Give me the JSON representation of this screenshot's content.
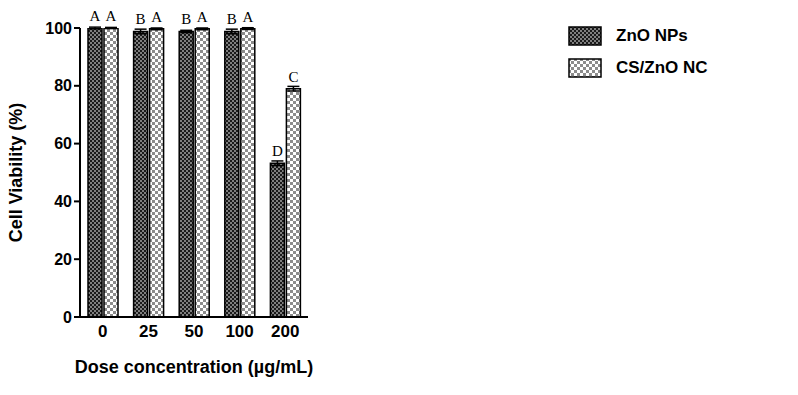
{
  "chart_data": {
    "type": "bar",
    "categories": [
      "0",
      "25",
      "50",
      "100",
      "200"
    ],
    "x_label": "Dose concentration (µg/mL)",
    "y_label": "Cell Viability (%)",
    "ylim": [
      0,
      100
    ],
    "yticks": [
      0,
      20,
      40,
      60,
      80,
      100
    ],
    "grid": false,
    "legend": "top right",
    "series": [
      {
        "name": "ZnO NPs",
        "color": "#1a1a1a",
        "values": [
          100,
          98.8,
          98.8,
          98.8,
          53.2
        ],
        "error": [
          0.3,
          0.8,
          0.4,
          0.8,
          0.8
        ],
        "letters": [
          "A",
          "B",
          "B",
          "B",
          "D"
        ]
      },
      {
        "name": "CS/ZnO NC",
        "color": "#8c8c8c",
        "values": [
          100,
          99.7,
          99.7,
          99.8,
          79
        ],
        "error": [
          0.2,
          0.3,
          0.3,
          0.3,
          0.8
        ],
        "letters": [
          "A",
          "A",
          "A",
          "A",
          "C"
        ]
      }
    ]
  }
}
